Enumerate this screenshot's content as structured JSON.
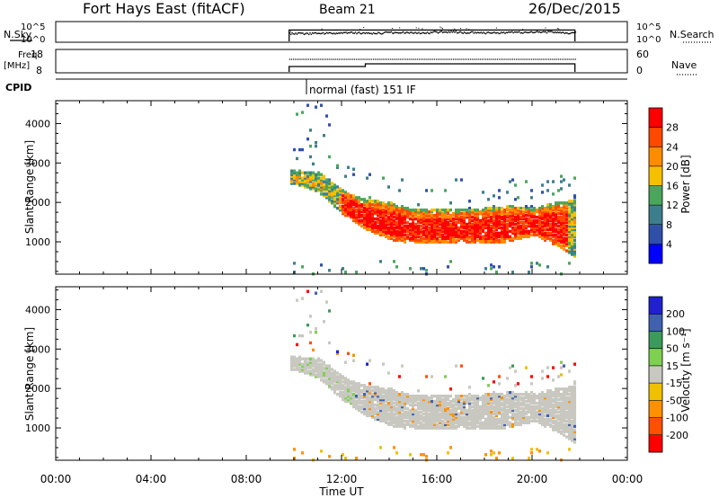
{
  "header": {
    "station": "Fort Hays East (fitACF)",
    "beam": "Beam 21",
    "date": "26/Dec/2015"
  },
  "side_labels": {
    "nsky": "N.Sky",
    "nsearch": "N.Search",
    "freq": "Freq.",
    "freq_unit": "[MHz]",
    "nave": "Nave",
    "cpid": "CPID"
  },
  "mini_ticks": {
    "noise_left": [
      "10^5",
      "10^0"
    ],
    "noise_right": [
      "10^5",
      "10^0"
    ],
    "freq_left": [
      "18",
      "8"
    ],
    "freq_right": [
      "60",
      "0"
    ]
  },
  "cpid_text": "normal (fast) 151 IF",
  "colors": {
    "power": [
      "#0000ff",
      "#3050a8",
      "#3c7e8c",
      "#4aa65c",
      "#f5c000",
      "#ff8c00",
      "#ff4800",
      "#ff0000"
    ],
    "velocity": [
      "#ff0000",
      "#ff5000",
      "#ff9000",
      "#f0c000",
      "#c8c8c0",
      "#7ed050",
      "#3c9a5a",
      "#4060b0",
      "#2020d0"
    ],
    "groundscatter": "#c8c8c0"
  },
  "chart_data": [
    {
      "type": "line",
      "name": "noise",
      "x_range_hours": [
        0,
        24
      ],
      "data_start_hour": 9.8,
      "data_end_hour": 21.8,
      "series": [
        {
          "name": "N.Sky",
          "values": [
            2.2,
            2.3,
            2.4,
            2.3,
            2.5,
            2.4,
            2.6,
            2.5,
            2.4,
            2.5,
            2.6,
            2.4
          ]
        },
        {
          "name": "N.Search",
          "values": [
            3.0,
            3.0,
            3.0,
            3.0,
            3.0,
            3.0,
            3.0,
            3.0,
            3.0,
            3.0,
            3.0,
            3.0
          ]
        }
      ]
    },
    {
      "type": "line",
      "name": "frequency-nave",
      "series": [
        {
          "name": "Freq.",
          "x": [
            9.8,
            13.0,
            13.0,
            21.8
          ],
          "values": [
            10.4,
            10.4,
            11.6,
            11.6
          ]
        },
        {
          "name": "Nave",
          "x": [
            9.8,
            21.8
          ],
          "values": [
            35,
            35
          ]
        }
      ]
    },
    {
      "type": "heatmap",
      "name": "power",
      "xlabel": "",
      "ylabel": "Slant Range [km]",
      "ylim": [
        180,
        4580
      ],
      "yticks": [
        "4000",
        "3000",
        "2000",
        "1000"
      ],
      "colorbar_label": "Power [dB]",
      "colorbar_ticks": [
        "28",
        "24",
        "20",
        "16",
        "12",
        "8",
        "4"
      ],
      "x_range_hours": [
        0,
        24
      ],
      "main_band": [
        {
          "t": 10.0,
          "lo": 2450,
          "hi": 2800
        },
        {
          "t": 11.0,
          "lo": 2250,
          "hi": 2750
        },
        {
          "t": 12.0,
          "lo": 1700,
          "hi": 2300
        },
        {
          "t": 13.0,
          "lo": 1300,
          "hi": 2050
        },
        {
          "t": 14.0,
          "lo": 1050,
          "hi": 2000
        },
        {
          "t": 15.0,
          "lo": 950,
          "hi": 1800
        },
        {
          "t": 16.0,
          "lo": 950,
          "hi": 1800
        },
        {
          "t": 17.0,
          "lo": 1000,
          "hi": 1800
        },
        {
          "t": 18.0,
          "lo": 950,
          "hi": 1850
        },
        {
          "t": 19.0,
          "lo": 1000,
          "hi": 1900
        },
        {
          "t": 20.0,
          "lo": 1150,
          "hi": 1850
        },
        {
          "t": 21.0,
          "lo": 900,
          "hi": 2000
        },
        {
          "t": 21.8,
          "lo": 600,
          "hi": 2050
        }
      ]
    },
    {
      "type": "heatmap",
      "name": "velocity",
      "xlabel": "Time UT",
      "ylabel": "Slant Range [km]",
      "ylim": [
        180,
        4580
      ],
      "yticks": [
        "4000",
        "3000",
        "2000",
        "1000"
      ],
      "xticks": [
        "00:00",
        "04:00",
        "08:00",
        "12:00",
        "16:00",
        "20:00",
        "00:00"
      ],
      "colorbar_label": "Velocity [m s⁻¹]",
      "colorbar_ticks": [
        "200",
        "100",
        "50",
        "15",
        "-15",
        "-50",
        "-100",
        "-200"
      ],
      "x_range_hours": [
        0,
        24
      ]
    }
  ]
}
